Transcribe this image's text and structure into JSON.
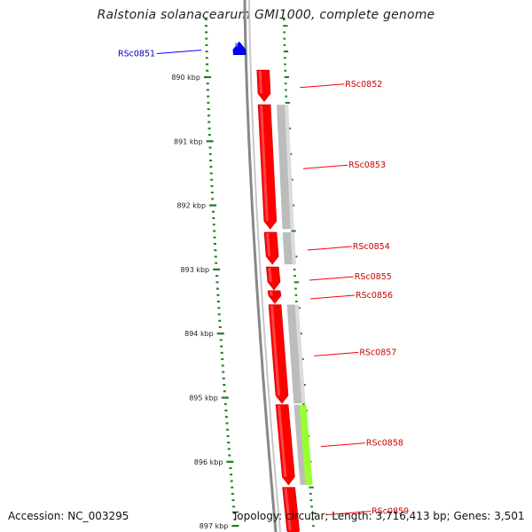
{
  "title": "Ralstonia solanacearum GMI1000, complete genome",
  "footer": {
    "accession": "Accession: NC_003295",
    "summary": "Topology: circular; Length: 3,716,413 bp; Genes: 3,501"
  },
  "colors": {
    "forward_gene": "#ff0000",
    "reverse_gene": "#0000ff",
    "reverse_label": "#0000bb",
    "forward_label": "#cc0000",
    "cds_feature": "#b5b5b5",
    "rna_feature": "#99ff33",
    "tick": "#1e7d1e",
    "backbone": "#888888"
  },
  "ruler": [
    {
      "label": "890 kbp",
      "kbp": 890
    },
    {
      "label": "891 kbp",
      "kbp": 891
    },
    {
      "label": "892 kbp",
      "kbp": 892
    },
    {
      "label": "893 kbp",
      "kbp": 893
    },
    {
      "label": "894 kbp",
      "kbp": 894
    },
    {
      "label": "895 kbp",
      "kbp": 895
    },
    {
      "label": "896 kbp",
      "kbp": 896
    },
    {
      "label": "897 kbp",
      "kbp": 897
    }
  ],
  "genes": [
    {
      "id": "RSc0851",
      "strand": "reverse",
      "start_kbp": 889.45,
      "end_kbp": 889.65
    },
    {
      "id": "RSc0852",
      "strand": "forward",
      "start_kbp": 889.89,
      "end_kbp": 890.38
    },
    {
      "id": "RSc0853",
      "strand": "forward",
      "start_kbp": 890.43,
      "end_kbp": 892.37
    },
    {
      "id": "RSc0854",
      "strand": "forward",
      "start_kbp": 892.42,
      "end_kbp": 892.92
    },
    {
      "id": "RSc0855",
      "strand": "forward",
      "start_kbp": 892.96,
      "end_kbp": 893.32
    },
    {
      "id": "RSc0856",
      "strand": "forward",
      "start_kbp": 893.33,
      "end_kbp": 893.53
    },
    {
      "id": "RSc0857",
      "strand": "forward",
      "start_kbp": 893.55,
      "end_kbp": 895.09
    },
    {
      "id": "RSc0858",
      "strand": "forward",
      "start_kbp": 895.11,
      "end_kbp": 896.36
    },
    {
      "id": "RSc0859",
      "strand": "forward",
      "start_kbp": 896.4,
      "end_kbp": 897.2
    }
  ],
  "features": [
    {
      "type": "CDS",
      "start_kbp": 890.43,
      "end_kbp": 892.37
    },
    {
      "type": "CDS",
      "start_kbp": 892.42,
      "end_kbp": 892.92
    },
    {
      "type": "CDS",
      "start_kbp": 893.55,
      "end_kbp": 895.09
    },
    {
      "type": "CDS",
      "start_kbp": 895.11,
      "end_kbp": 896.36
    },
    {
      "type": "RNA",
      "start_kbp": 895.11,
      "end_kbp": 896.36
    }
  ]
}
